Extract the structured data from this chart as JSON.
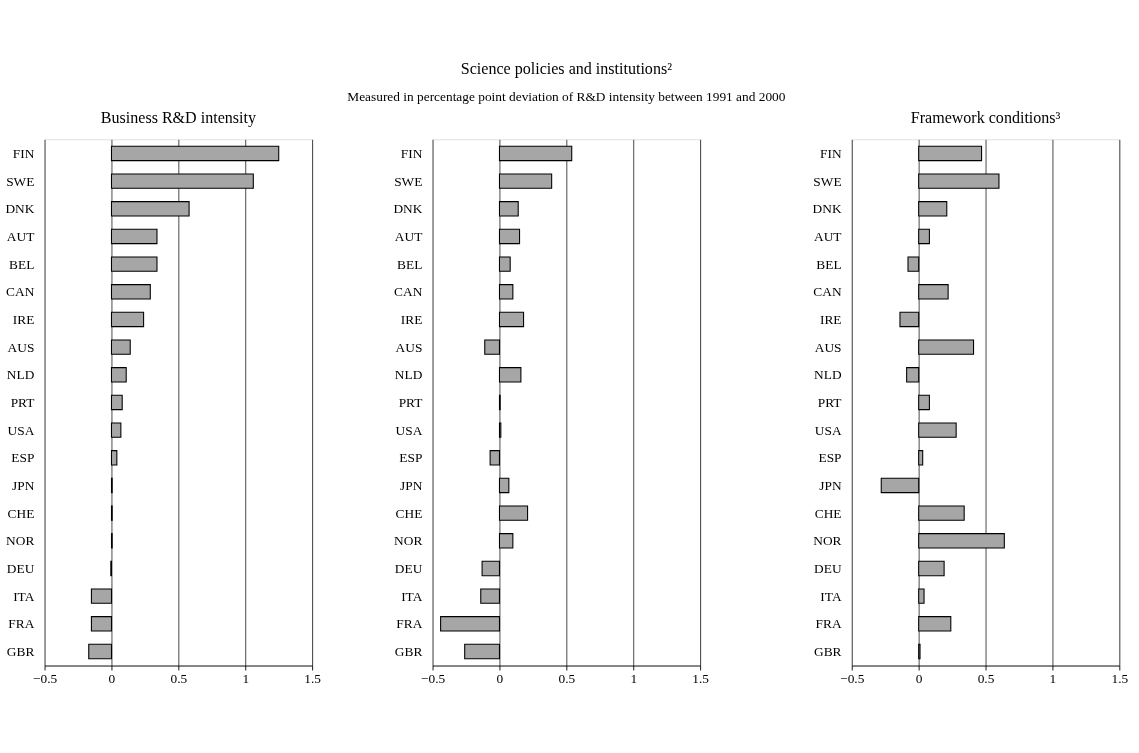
{
  "chart_data": [
    {
      "type": "bar",
      "orientation": "horizontal",
      "title": "Business R&D intensity",
      "categories": [
        "FIN",
        "SWE",
        "DNK",
        "AUT",
        "BEL",
        "CAN",
        "IRE",
        "AUS",
        "NLD",
        "PRT",
        "USA",
        "ESP",
        "JPN",
        "CHE",
        "NOR",
        "DEU",
        "ITA",
        "FRA",
        "GBR"
      ],
      "values": [
        1.25,
        1.06,
        0.58,
        0.34,
        0.34,
        0.29,
        0.24,
        0.14,
        0.11,
        0.08,
        0.07,
        0.04,
        0.005,
        0.005,
        0.005,
        -0.005,
        -0.15,
        -0.15,
        -0.17
      ],
      "color": "#a6a6a6",
      "xlim": [
        -0.5,
        1.5
      ],
      "xticks": [
        -0.5,
        0,
        0.5,
        1,
        1.5
      ],
      "grid": "x"
    },
    {
      "type": "bar",
      "orientation": "horizontal",
      "title": "Science policies and institutions²",
      "subtitle": "Measured in percentage point deviation of R&D intensity between 1991 and 2000",
      "categories": [
        "FIN",
        "SWE",
        "DNK",
        "AUT",
        "BEL",
        "CAN",
        "IRE",
        "AUS",
        "NLD",
        "PRT",
        "USA",
        "ESP",
        "JPN",
        "CHE",
        "NOR",
        "DEU",
        "ITA",
        "FRA",
        "GBR"
      ],
      "values": [
        0.54,
        0.39,
        0.14,
        0.15,
        0.08,
        0.1,
        0.18,
        -0.11,
        0.16,
        0.005,
        0.01,
        -0.07,
        0.07,
        0.21,
        0.1,
        -0.13,
        -0.14,
        -0.44,
        -0.26
      ],
      "color": "#a6a6a6",
      "xlim": [
        -0.5,
        1.5
      ],
      "xticks": [
        -0.5,
        0,
        0.5,
        1,
        1.5
      ],
      "grid": "x"
    },
    {
      "type": "bar",
      "orientation": "horizontal",
      "title": "Framework conditions³",
      "categories": [
        "FIN",
        "SWE",
        "DNK",
        "AUT",
        "BEL",
        "CAN",
        "IRE",
        "AUS",
        "NLD",
        "PRT",
        "USA",
        "ESP",
        "JPN",
        "CHE",
        "NOR",
        "DEU",
        "ITA",
        "FRA",
        "GBR"
      ],
      "values": [
        0.47,
        0.6,
        0.21,
        0.08,
        -0.08,
        0.22,
        -0.14,
        0.41,
        -0.09,
        0.08,
        0.28,
        0.03,
        -0.28,
        0.34,
        0.64,
        0.19,
        0.04,
        0.24,
        0.01
      ],
      "color": "#a6a6a6",
      "xlim": [
        -0.5,
        1.5
      ],
      "xticks": [
        -0.5,
        0,
        0.5,
        1,
        1.5
      ],
      "grid": "x"
    }
  ]
}
